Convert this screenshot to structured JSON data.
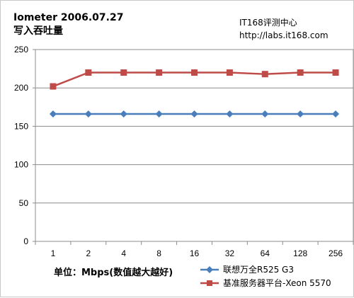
{
  "chart_data": {
    "type": "line",
    "title": "Iometer 2006.07.27",
    "subtitle": "写入吞吐量",
    "watermark": [
      "IT168评测中心",
      "http://labs.it168.com"
    ],
    "xlabel": "单位：Mbps(数值越大越好)",
    "ylabel": "",
    "categories": [
      "1",
      "2",
      "4",
      "8",
      "16",
      "32",
      "64",
      "128",
      "256"
    ],
    "ylim": [
      0,
      250
    ],
    "yticks": [
      "0",
      "50",
      "100",
      "150",
      "200",
      "250"
    ],
    "grid": true,
    "legend_position": "bottom-right",
    "series": [
      {
        "name": "联想万全R525 G3",
        "color": "#4a7ebb",
        "marker": "diamond",
        "values": [
          166,
          166,
          166,
          166,
          166,
          166,
          166,
          166,
          166
        ]
      },
      {
        "name": "基准服务器平台-Xeon 5570",
        "color": "#be4b48",
        "marker": "square",
        "values": [
          202,
          220,
          220,
          220,
          220,
          220,
          218,
          220,
          220
        ]
      }
    ]
  }
}
